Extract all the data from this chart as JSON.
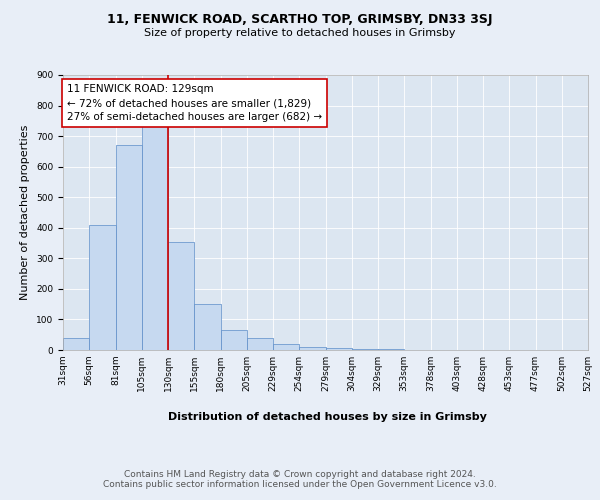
{
  "title1": "11, FENWICK ROAD, SCARTHO TOP, GRIMSBY, DN33 3SJ",
  "title2": "Size of property relative to detached houses in Grimsby",
  "xlabel": "Distribution of detached houses by size in Grimsby",
  "ylabel": "Number of detached properties",
  "bar_values": [
    40,
    410,
    670,
    745,
    355,
    150,
    65,
    40,
    20,
    10,
    5,
    3,
    2,
    1,
    0,
    1,
    0,
    0,
    0,
    1
  ],
  "bar_labels": [
    "31sqm",
    "56sqm",
    "81sqm",
    "105sqm",
    "130sqm",
    "155sqm",
    "180sqm",
    "205sqm",
    "229sqm",
    "254sqm",
    "279sqm",
    "304sqm",
    "329sqm",
    "353sqm",
    "378sqm",
    "403sqm",
    "428sqm",
    "453sqm",
    "477sqm",
    "502sqm",
    "527sqm"
  ],
  "bar_color": "#c6d9f0",
  "bar_edge_color": "#5b8cc8",
  "bar_width": 1.0,
  "property_line_x": 4,
  "property_line_color": "#cc0000",
  "annotation_text": "11 FENWICK ROAD: 129sqm\n← 72% of detached houses are smaller (1,829)\n27% of semi-detached houses are larger (682) →",
  "annotation_box_color": "#ffffff",
  "annotation_box_edge": "#cc0000",
  "ylim": [
    0,
    900
  ],
  "yticks": [
    0,
    100,
    200,
    300,
    400,
    500,
    600,
    700,
    800,
    900
  ],
  "background_color": "#e8eef7",
  "plot_bg_color": "#dce6f1",
  "footer": "Contains HM Land Registry data © Crown copyright and database right 2024.\nContains public sector information licensed under the Open Government Licence v3.0.",
  "title_fontsize": 9,
  "subtitle_fontsize": 8,
  "axis_label_fontsize": 8,
  "tick_fontsize": 6.5,
  "annotation_fontsize": 7.5,
  "footer_fontsize": 6.5
}
